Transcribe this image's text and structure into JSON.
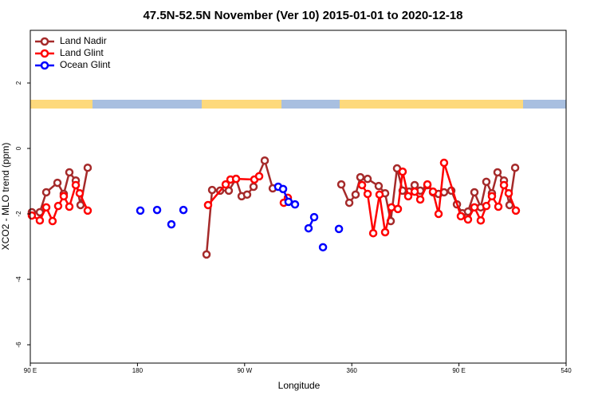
{
  "chart_data": {
    "type": "line",
    "title": "47.5N-52.5N November (Ver 10)   2015-01-01 to 2020-12-18",
    "x_label": "Longitude",
    "y_label": "XCO2 - MLO trend (ppm)",
    "xlim": [
      90,
      540
    ],
    "ylim": [
      -6.56,
      3.61
    ],
    "xticks": [
      {
        "value": 90,
        "label": "90 E"
      },
      180,
      {
        "value": 270,
        "label": "90 W"
      },
      360,
      {
        "value": 450,
        "label": "90 E"
      },
      540
    ],
    "yticks": [
      -6,
      -4,
      -2,
      0,
      2
    ],
    "legend": "top-left",
    "series": [
      {
        "name": "Land Nadir",
        "color": "#a52a2a",
        "x": [
          91.3,
          98.0,
          103.4,
          112.8,
          118.1,
          122.8,
          128.2,
          132.2,
          138.2,
          null,
          238.0,
          242.7,
          249.4,
          256.7,
          262.8,
          267.5,
          272.1,
          277.5,
          286.9,
          293.6,
          null,
          351.2,
          357.9,
          363.2,
          367.2,
          373.3,
          382.6,
          388.0,
          392.7,
          398.0,
          402.7,
          408.1,
          412.8,
          417.5,
          423.5,
          428.2,
          432.9,
          437.5,
          443.6,
          448.3,
          452.9,
          457.6,
          463.0,
          468.3,
          473.0,
          477.7,
          482.4,
          487.8,
          492.5,
          497.2
        ],
        "values": [
          -1.95,
          -1.95,
          -1.34,
          -1.05,
          -1.39,
          -0.73,
          -0.98,
          -1.73,
          -0.59,
          null,
          -3.24,
          -1.27,
          -1.29,
          -1.29,
          -0.93,
          -1.46,
          -1.41,
          -1.17,
          -0.37,
          -1.22,
          null,
          -1.1,
          -1.66,
          -1.41,
          -0.88,
          -0.93,
          -1.15,
          -1.37,
          -2.22,
          -0.61,
          -1.29,
          -1.32,
          -1.12,
          -1.29,
          -1.12,
          -1.34,
          -1.39,
          -1.34,
          -1.29,
          -1.71,
          -1.98,
          -1.93,
          -1.34,
          -1.8,
          -1.02,
          -1.37,
          -0.73,
          -0.98,
          -1.73,
          -0.59
        ]
      },
      {
        "name": "Land Glint",
        "color": "#ff0000",
        "x": [
          91.3,
          98.0,
          103.4,
          108.7,
          113.4,
          118.1,
          122.8,
          128.2,
          131.5,
          138.2,
          null,
          239.3,
          254.1,
          258.1,
          262.8,
          278.2,
          282.2,
          null,
          302.9,
          306.3,
          null,
          368.6,
          373.3,
          378.0,
          383.3,
          388.0,
          393.3,
          398.7,
          402.7,
          407.4,
          412.8,
          417.5,
          423.5,
          428.2,
          432.9,
          437.5,
          451.6,
          457.6,
          463.0,
          468.3,
          473.0,
          477.7,
          483.1,
          487.8,
          491.8,
          497.8
        ],
        "values": [
          -2.05,
          -2.2,
          -1.8,
          -2.22,
          -1.76,
          -1.46,
          -1.78,
          -1.12,
          -1.37,
          -1.9,
          null,
          -1.73,
          -1.1,
          -0.95,
          -0.93,
          -0.95,
          -0.85,
          null,
          -1.66,
          -1.51,
          null,
          -1.12,
          -1.39,
          -2.59,
          -1.41,
          -2.56,
          -1.8,
          -1.85,
          -0.71,
          -1.46,
          -1.32,
          -1.56,
          -1.1,
          -1.32,
          -2.0,
          -0.44,
          -2.07,
          -2.17,
          -1.8,
          -2.2,
          -1.76,
          -1.46,
          -1.78,
          -1.12,
          -1.37,
          -1.9
        ]
      },
      {
        "name": "Ocean Glint",
        "color": "#0000ff",
        "x": [
          182.4,
          null,
          196.5,
          null,
          208.5,
          null,
          218.6,
          null,
          298.2,
          302.3,
          306.9,
          312.3,
          null,
          323.7,
          328.4,
          null,
          335.8,
          null,
          349.2
        ],
        "values": [
          -1.9,
          null,
          -1.88,
          null,
          -2.32,
          null,
          -1.88,
          null,
          -1.17,
          -1.24,
          -1.63,
          -1.71,
          null,
          -2.44,
          -2.1,
          null,
          -3.02,
          null,
          -2.46
        ]
      }
    ]
  }
}
